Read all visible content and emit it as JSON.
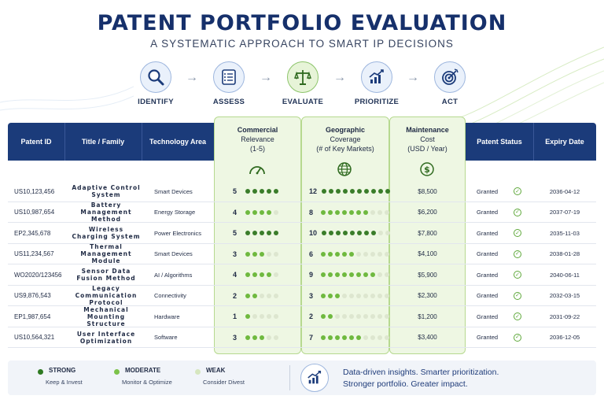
{
  "header": {
    "title": "PATENT PORTFOLIO EVALUATION",
    "subtitle": "A SYSTEMATIC APPROACH TO SMART IP DECISIONS"
  },
  "steps": [
    {
      "label": "IDENTIFY",
      "icon": "magnifier-icon"
    },
    {
      "label": "ASSESS",
      "icon": "checklist-icon"
    },
    {
      "label": "EVALUATE",
      "icon": "scales-icon",
      "active": true
    },
    {
      "label": "PRIORITIZE",
      "icon": "growth-chart-icon"
    },
    {
      "label": "ACT",
      "icon": "target-icon"
    }
  ],
  "table": {
    "headers": {
      "patent_id": "Patent ID",
      "title": "Title / Family",
      "tech": "Technology Area",
      "commercial": "Commercial Relevance (1-5)",
      "geo": "Geographic Coverage (# of Key Markets)",
      "maintenance": "Maintenance Cost (USD / Year)",
      "status": "Patent Status",
      "expiry": "Expiry Date"
    },
    "header_lines": {
      "commercial": [
        "Commercial",
        "Relevance",
        "(1-5)"
      ],
      "geo": [
        "Geographic",
        "Coverage",
        "(# of Key Markets)"
      ],
      "maintenance": [
        "Maintenance",
        "Cost",
        "(USD / Year)"
      ]
    },
    "rows": [
      {
        "id": "US10,123,456",
        "title": "Adaptive Control System",
        "tech": "Smart Devices",
        "commercial": 5,
        "geo": 12,
        "cost": "$8,500",
        "status": "Granted",
        "expiry": "2036-04-12"
      },
      {
        "id": "US10,987,654",
        "title": "Battery Management Method",
        "tech": "Energy Storage",
        "commercial": 4,
        "geo": 8,
        "cost": "$6,200",
        "status": "Granted",
        "expiry": "2037-07-19"
      },
      {
        "id": "EP2,345,678",
        "title": "Wireless Charging System",
        "tech": "Power Electronics",
        "commercial": 5,
        "geo": 10,
        "cost": "$7,800",
        "status": "Granted",
        "expiry": "2035-11-03"
      },
      {
        "id": "US11,234,567",
        "title": "Thermal Management Module",
        "tech": "Smart Devices",
        "commercial": 3,
        "geo": 6,
        "cost": "$4,100",
        "status": "Granted",
        "expiry": "2038-01-28"
      },
      {
        "id": "WO2020/123456",
        "title": "Sensor Data Fusion Method",
        "tech": "AI / Algorithms",
        "commercial": 4,
        "geo": 9,
        "cost": "$5,900",
        "status": "Granted",
        "expiry": "2040-06-11"
      },
      {
        "id": "US9,876,543",
        "title": "Legacy Communication Protocol",
        "tech": "Connectivity",
        "commercial": 2,
        "geo": 3,
        "cost": "$2,300",
        "status": "Granted",
        "expiry": "2032-03-15"
      },
      {
        "id": "EP1,987,654",
        "title": "Mechanical Mounting Structure",
        "tech": "Hardware",
        "commercial": 1,
        "geo": 2,
        "cost": "$1,200",
        "status": "Granted",
        "expiry": "2031-09-22"
      },
      {
        "id": "US10,564,321",
        "title": "User Interface Optimization",
        "tech": "Software",
        "commercial": 3,
        "geo": 7,
        "cost": "$3,400",
        "status": "Granted",
        "expiry": "2036-12-05"
      }
    ]
  },
  "legend": {
    "items": [
      {
        "label": "STRONG",
        "sub": "Keep & Invest",
        "color": "#2f7a22"
      },
      {
        "label": "MODERATE",
        "sub": "Monitor & Optimize",
        "color": "#7cc24a"
      },
      {
        "label": "WEAK",
        "sub": "Consider Divest",
        "color": "#d6e6bf"
      }
    ],
    "tagline_1": "Data-driven insights. Smarter prioritization.",
    "tagline_2": "Stronger portfolio. Greater impact."
  },
  "colors": {
    "navy": "#1b3b7a",
    "strong": "#3a7d2a",
    "moderate": "#6fb93f",
    "weak": "#dde6cf",
    "highlight": "#eef7e3"
  }
}
